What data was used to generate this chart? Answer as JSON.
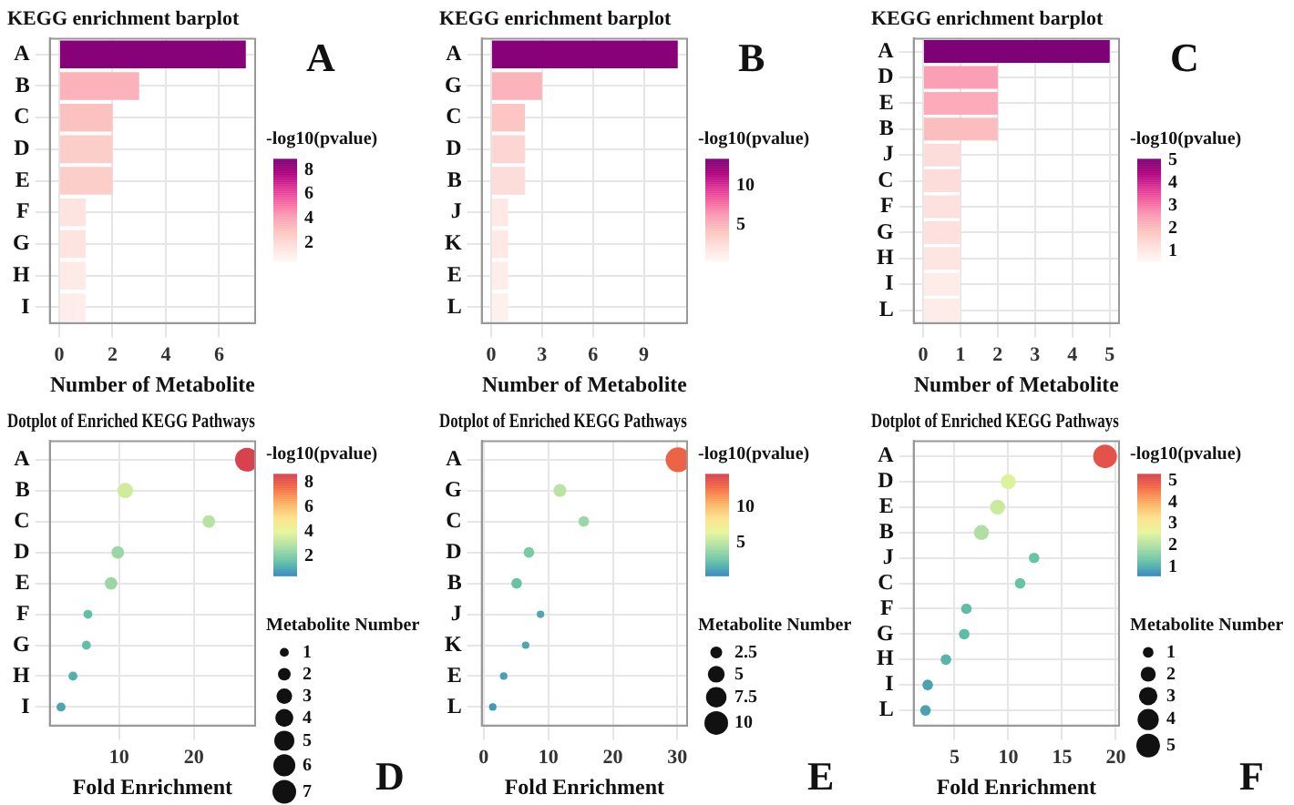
{
  "chart_data": [
    {
      "type": "bar",
      "orientation": "horizontal",
      "title": "KEGG enrichment barplot",
      "xlabel": "Number of Metabolite",
      "categories": [
        "A",
        "B",
        "C",
        "D",
        "E",
        "F",
        "G",
        "H",
        "I"
      ],
      "values": [
        7,
        3,
        2,
        2,
        2,
        1,
        1,
        1,
        1
      ],
      "cvalues": [
        8.6,
        3.5,
        3.0,
        2.5,
        2.5,
        1.5,
        1.5,
        1.2,
        1.0
      ],
      "clabel": "-log10(pvalue)",
      "clim": [
        0.5,
        8.9
      ],
      "cticks": [
        2,
        4,
        6,
        8
      ],
      "xlim": [
        -0.35,
        7.35
      ],
      "xticks": [
        0,
        2,
        4,
        6
      ],
      "grid": true,
      "annotations": [
        "A"
      ]
    },
    {
      "type": "bar",
      "orientation": "horizontal",
      "title": "KEGG enrichment barplot",
      "xlabel": "Number of Metabolite",
      "categories": [
        "A",
        "G",
        "C",
        "D",
        "B",
        "J",
        "K",
        "E",
        "L"
      ],
      "values": [
        11,
        3,
        2,
        2,
        2,
        1,
        1,
        1,
        1
      ],
      "cvalues": [
        13,
        5,
        4,
        3,
        2.5,
        1.5,
        1.5,
        1.2,
        1.0
      ],
      "clabel": "-log10(pvalue)",
      "clim": [
        0.4,
        13.5
      ],
      "cticks": [
        5,
        10
      ],
      "xlim": [
        -0.55,
        11.55
      ],
      "xticks": [
        0,
        3,
        6,
        9
      ],
      "grid": true,
      "annotations": [
        "B"
      ]
    },
    {
      "type": "bar",
      "orientation": "horizontal",
      "title": "KEGG enrichment barplot",
      "xlabel": "Number of Metabolite",
      "categories": [
        "A",
        "D",
        "E",
        "B",
        "J",
        "C",
        "F",
        "G",
        "H",
        "I",
        "L"
      ],
      "values": [
        5,
        2,
        2,
        2,
        1,
        1,
        1,
        1,
        1,
        1,
        1
      ],
      "cvalues": [
        5.0,
        2.5,
        2.3,
        2.0,
        1.3,
        1.3,
        1.2,
        1.2,
        1.1,
        0.9,
        0.9
      ],
      "clabel": "-log10(pvalue)",
      "clim": [
        0.6,
        5.05
      ],
      "cticks": [
        1,
        2,
        3,
        4,
        5
      ],
      "xlim": [
        -0.25,
        5.25
      ],
      "xticks": [
        0,
        1,
        2,
        3,
        4,
        5
      ],
      "grid": true,
      "annotations": [
        "C"
      ]
    },
    {
      "type": "bubble",
      "orientation": "horizontal",
      "title": "Dotplot of Enriched KEGG Pathways",
      "xlabel": "Fold Enrichment",
      "categories": [
        "A",
        "B",
        "C",
        "D",
        "E",
        "F",
        "G",
        "H",
        "I"
      ],
      "values": [
        27.1,
        10.8,
        22.0,
        9.8,
        8.9,
        5.8,
        5.6,
        3.8,
        2.2
      ],
      "sizes": [
        7,
        3,
        2,
        2,
        2,
        1,
        1,
        1,
        1
      ],
      "size_legend": [
        1,
        2,
        3,
        4,
        5,
        6,
        7
      ],
      "legend_title": "Metabolite Number",
      "cvalues": [
        8.6,
        3.5,
        3.0,
        2.5,
        2.5,
        1.5,
        1.5,
        1.2,
        1.0
      ],
      "clabel": "-log10(pvalue)",
      "clim": [
        0.4,
        8.7
      ],
      "cticks": [
        2,
        4,
        6,
        8
      ],
      "xlim": [
        0.7,
        28.2
      ],
      "xticks": [
        10,
        20
      ],
      "grid": true,
      "annotations": [
        "D"
      ]
    },
    {
      "type": "bubble",
      "orientation": "horizontal",
      "title": "Dotplot of Enriched KEGG Pathways",
      "xlabel": "Fold Enrichment",
      "categories": [
        "A",
        "G",
        "C",
        "D",
        "B",
        "J",
        "K",
        "E",
        "L"
      ],
      "values": [
        30.1,
        11.8,
        15.5,
        7.0,
        5.1,
        8.8,
        6.5,
        3.1,
        1.4
      ],
      "sizes": [
        11,
        3,
        2,
        2,
        2,
        1,
        1,
        1,
        1
      ],
      "size_legend": [
        2.5,
        5.0,
        7.5,
        10.0
      ],
      "legend_title": "Metabolite Number",
      "cvalues": [
        13,
        5,
        4,
        3,
        2.5,
        1.5,
        1.5,
        1.2,
        1.0
      ],
      "clabel": "-log10(pvalue)",
      "clim": [
        0.4,
        14.6
      ],
      "cticks": [
        5,
        10
      ],
      "xlim": [
        -0.3,
        31.5
      ],
      "xticks": [
        0,
        10,
        20,
        30
      ],
      "grid": true,
      "annotations": [
        "E"
      ]
    },
    {
      "type": "bubble",
      "orientation": "horizontal",
      "title": "Dotplot of Enriched KEGG Pathways",
      "xlabel": "Fold Enrichment",
      "categories": [
        "A",
        "D",
        "E",
        "B",
        "J",
        "C",
        "F",
        "G",
        "H",
        "I",
        "L"
      ],
      "values": [
        19.0,
        10.0,
        9.0,
        7.5,
        12.4,
        11.1,
        6.1,
        5.9,
        4.2,
        2.5,
        2.3
      ],
      "sizes": [
        5,
        2,
        2,
        2,
        1,
        1,
        1,
        1,
        1,
        1,
        1
      ],
      "cvalues": [
        5.0,
        2.5,
        2.3,
        2.0,
        1.3,
        1.3,
        1.2,
        1.2,
        1.1,
        0.9,
        0.9
      ],
      "clabel": "-log10(pvalue)",
      "clim": [
        0.6,
        5.3
      ],
      "cticks": [
        1,
        2,
        3,
        4,
        5
      ],
      "size_legend": [
        1,
        2,
        3,
        4,
        5
      ],
      "legend_title": "Metabolite Number",
      "xlim": [
        1.2,
        20.3
      ],
      "xticks": [
        5,
        10,
        15,
        20
      ],
      "grid": true,
      "annotations": [
        "F"
      ]
    }
  ]
}
